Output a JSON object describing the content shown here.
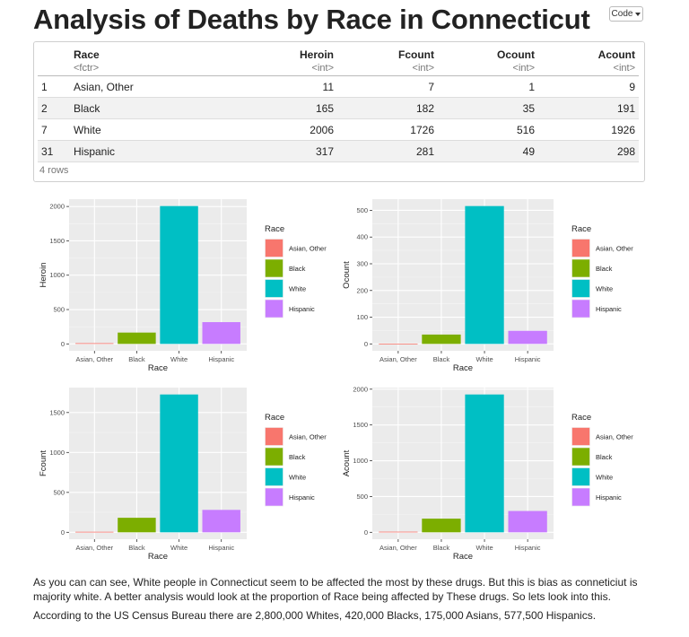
{
  "page": {
    "title": "Analysis of Deaths by Race in Connecticut",
    "code_button": "Code"
  },
  "table": {
    "columns": [
      {
        "name": "",
        "type": ""
      },
      {
        "name": "Race",
        "type": "<fctr>"
      },
      {
        "name": "Heroin",
        "type": "<int>"
      },
      {
        "name": "Fcount",
        "type": "<int>"
      },
      {
        "name": "Ocount",
        "type": "<int>"
      },
      {
        "name": "Acount",
        "type": "<int>"
      }
    ],
    "rows": [
      [
        "1",
        "Asian, Other",
        "11",
        "7",
        "1",
        "9"
      ],
      [
        "2",
        "Black",
        "165",
        "182",
        "35",
        "191"
      ],
      [
        "7",
        "White",
        "2006",
        "1726",
        "516",
        "1926"
      ],
      [
        "31",
        "Hispanic",
        "317",
        "281",
        "49",
        "298"
      ]
    ],
    "footer": "4 rows"
  },
  "colors": {
    "Asian, Other": "#F8766D",
    "Black": "#7CAE00",
    "White": "#00BFC4",
    "Hispanic": "#C77CFF",
    "panel_bg": "#EBEBEB",
    "grid": "#ffffff"
  },
  "chart_data": [
    {
      "type": "bar",
      "categories": [
        "Asian, Other",
        "Black",
        "White",
        "Hispanic"
      ],
      "values": [
        11,
        165,
        2006,
        317
      ],
      "xlabel": "Race",
      "ylabel": "Heroin",
      "yticks": [
        0,
        500,
        1000,
        1500,
        2000
      ],
      "ylim": [
        0,
        2006
      ],
      "legend_title": "Race",
      "legend_position": "right",
      "grid": true
    },
    {
      "type": "bar",
      "categories": [
        "Asian, Other",
        "Black",
        "White",
        "Hispanic"
      ],
      "values": [
        1,
        35,
        516,
        49
      ],
      "xlabel": "Race",
      "ylabel": "Ocount",
      "yticks": [
        0,
        100,
        200,
        300,
        400,
        500
      ],
      "ylim": [
        0,
        516
      ],
      "legend_title": "Race",
      "legend_position": "right",
      "grid": true
    },
    {
      "type": "bar",
      "categories": [
        "Asian, Other",
        "Black",
        "White",
        "Hispanic"
      ],
      "values": [
        7,
        182,
        1726,
        281
      ],
      "xlabel": "Race",
      "ylabel": "Fcount",
      "yticks": [
        0,
        500,
        1000,
        1500
      ],
      "ylim": [
        0,
        1726
      ],
      "legend_title": "Race",
      "legend_position": "right",
      "grid": true
    },
    {
      "type": "bar",
      "categories": [
        "Asian, Other",
        "Black",
        "White",
        "Hispanic"
      ],
      "values": [
        9,
        191,
        1926,
        298
      ],
      "xlabel": "Race",
      "ylabel": "Acount",
      "yticks": [
        0,
        500,
        1000,
        1500,
        2000
      ],
      "ylim": [
        0,
        1926
      ],
      "legend_title": "Race",
      "legend_position": "right",
      "grid": true
    }
  ],
  "text": {
    "paragraph1": "As you can can see, White people in Connecticut seem to be affected the most by these drugs. But this is bias as conneticiut is majority white. A better analysis would look at the proportion of Race being affected by These drugs. So lets look into this.",
    "paragraph2": "According to the US Census Bureau there are 2,800,000 Whites, 420,000 Blacks, 175,000 Asians, 577,500 Hispanics."
  }
}
